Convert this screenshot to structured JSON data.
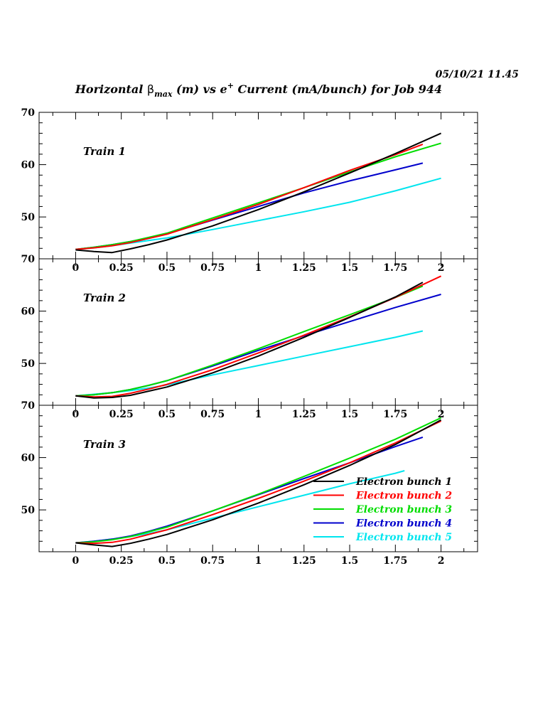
{
  "header": {
    "timestamp": "05/10/21  11.45",
    "title_pre": "Horizontal ",
    "title_beta": "β",
    "title_sub": "max",
    "title_mid": " (m) vs e",
    "title_sup": "+",
    "title_post": " Current (mA/bunch) for Job 944"
  },
  "chart_data": {
    "type": "line",
    "x_range": [
      -0.2,
      2.2
    ],
    "y_range": [
      42,
      70
    ],
    "x_ticks": [
      0,
      0.25,
      0.5,
      0.75,
      1,
      1.25,
      1.5,
      1.75,
      2
    ],
    "x_tick_labels": [
      "0",
      "0.25",
      "0.5",
      "0.75",
      "1",
      "1.25",
      "1.5",
      "1.75",
      "2"
    ],
    "y_ticks": [
      50,
      60,
      70
    ],
    "y_tick_labels": [
      "50",
      "60",
      "70"
    ],
    "series_meta": [
      {
        "name": "Electron bunch 1",
        "color": "#000000"
      },
      {
        "name": "Electron bunch 2",
        "color": "#ff0000"
      },
      {
        "name": "Electron bunch 3",
        "color": "#00dd00"
      },
      {
        "name": "Electron bunch 4",
        "color": "#0000cc"
      },
      {
        "name": "Electron bunch 5",
        "color": "#00e5ee"
      }
    ],
    "legend_position": "bottom-right",
    "panels": [
      {
        "label": "Train 1",
        "series": [
          {
            "x": [
              0,
              0.1,
              0.2,
              0.3,
              0.4,
              0.5,
              0.75,
              1,
              1.25,
              1.5,
              1.75,
              2
            ],
            "y": [
              43.7,
              43.4,
              43.2,
              43.9,
              44.7,
              45.6,
              48.3,
              51.4,
              54.8,
              58.4,
              62.1,
              66.0
            ]
          },
          {
            "x": [
              0,
              0.1,
              0.2,
              0.3,
              0.4,
              0.5,
              0.75,
              1,
              1.25,
              1.5,
              1.75,
              1.9
            ],
            "y": [
              43.8,
              44.1,
              44.5,
              45.1,
              45.9,
              46.7,
              49.5,
              52.4,
              55.6,
              58.9,
              61.9,
              63.9
            ]
          },
          {
            "x": [
              0,
              0.1,
              0.2,
              0.3,
              0.4,
              0.5,
              0.75,
              1,
              1.25,
              1.5,
              1.75,
              2
            ],
            "y": [
              43.8,
              44.2,
              44.7,
              45.3,
              46.1,
              46.9,
              49.8,
              52.7,
              55.6,
              58.6,
              61.5,
              64.1
            ]
          },
          {
            "x": [
              0,
              0.1,
              0.2,
              0.3,
              0.4,
              0.5,
              0.75,
              1,
              1.25,
              1.5,
              1.75,
              1.9
            ],
            "y": [
              43.8,
              44.2,
              44.7,
              45.3,
              46.0,
              46.8,
              49.4,
              52.0,
              54.6,
              56.9,
              59.0,
              60.3
            ]
          },
          {
            "x": [
              0,
              0.1,
              0.2,
              0.3,
              0.4,
              0.5,
              0.75,
              1,
              1.25,
              1.5,
              1.75,
              2
            ],
            "y": [
              43.8,
              44.1,
              44.5,
              45.0,
              45.5,
              46.0,
              47.6,
              49.3,
              51.0,
              52.8,
              55.0,
              57.4
            ]
          }
        ]
      },
      {
        "label": "Train 2",
        "series": [
          {
            "x": [
              0,
              0.1,
              0.2,
              0.3,
              0.4,
              0.5,
              0.75,
              1,
              1.25,
              1.5,
              1.75,
              1.9
            ],
            "y": [
              43.8,
              43.4,
              43.5,
              43.9,
              44.7,
              45.5,
              48.2,
              51.4,
              55.0,
              58.8,
              62.7,
              65.5
            ]
          },
          {
            "x": [
              0,
              0.1,
              0.2,
              0.3,
              0.4,
              0.5,
              0.75,
              1,
              1.25,
              1.5,
              1.75,
              2
            ],
            "y": [
              43.8,
              43.6,
              43.7,
              44.3,
              45.1,
              46.0,
              48.8,
              52.0,
              55.4,
              58.9,
              62.6,
              66.7
            ]
          },
          {
            "x": [
              0,
              0.1,
              0.2,
              0.3,
              0.4,
              0.5,
              0.75,
              1,
              1.25,
              1.5,
              1.75,
              1.9
            ],
            "y": [
              43.8,
              44.0,
              44.4,
              45.0,
              45.8,
              46.7,
              49.7,
              52.8,
              56.1,
              59.3,
              62.6,
              64.8
            ]
          },
          {
            "x": [
              0,
              0.1,
              0.2,
              0.3,
              0.4,
              0.5,
              0.75,
              1,
              1.25,
              1.5,
              1.75,
              2
            ],
            "y": [
              43.8,
              44.0,
              44.4,
              45.0,
              45.8,
              46.7,
              49.5,
              52.5,
              55.3,
              58.0,
              60.7,
              63.2
            ]
          },
          {
            "x": [
              0,
              0.1,
              0.2,
              0.3,
              0.4,
              0.5,
              0.75,
              1,
              1.25,
              1.5,
              1.75,
              1.9
            ],
            "y": [
              43.8,
              44.1,
              44.4,
              44.8,
              45.3,
              45.9,
              47.8,
              49.6,
              51.4,
              53.2,
              55.0,
              56.2
            ]
          }
        ]
      },
      {
        "label": "Train 3",
        "series": [
          {
            "x": [
              0,
              0.1,
              0.2,
              0.3,
              0.4,
              0.5,
              0.75,
              1,
              1.25,
              1.5,
              1.75,
              2
            ],
            "y": [
              43.7,
              43.3,
              43.0,
              43.6,
              44.4,
              45.3,
              48.1,
              51.3,
              54.8,
              58.5,
              62.5,
              67.2
            ]
          },
          {
            "x": [
              0,
              0.1,
              0.2,
              0.3,
              0.4,
              0.5,
              0.75,
              1,
              1.25,
              1.5,
              1.75,
              2
            ],
            "y": [
              43.7,
              43.6,
              43.8,
              44.4,
              45.3,
              46.2,
              49.1,
              52.2,
              55.5,
              59.0,
              62.8,
              67.0
            ]
          },
          {
            "x": [
              0,
              0.1,
              0.2,
              0.3,
              0.4,
              0.5,
              0.75,
              1,
              1.25,
              1.5,
              1.75,
              2
            ],
            "y": [
              43.7,
              43.9,
              44.3,
              44.9,
              45.8,
              46.7,
              49.8,
              53.0,
              56.4,
              59.9,
              63.5,
              67.6
            ]
          },
          {
            "x": [
              0,
              0.1,
              0.2,
              0.3,
              0.4,
              0.5,
              0.75,
              1,
              1.25,
              1.5,
              1.75,
              1.9
            ],
            "y": [
              43.7,
              44.0,
              44.4,
              45.0,
              45.9,
              46.9,
              49.8,
              52.9,
              56.0,
              59.0,
              62.1,
              63.9
            ]
          },
          {
            "x": [
              0,
              0.1,
              0.2,
              0.3,
              0.4,
              0.5,
              0.75,
              1,
              1.25,
              1.5,
              1.75,
              1.8
            ],
            "y": [
              43.7,
              44.0,
              44.4,
              44.9,
              45.5,
              46.2,
              48.4,
              50.6,
              52.8,
              55.0,
              57.0,
              57.5
            ]
          }
        ]
      }
    ]
  }
}
